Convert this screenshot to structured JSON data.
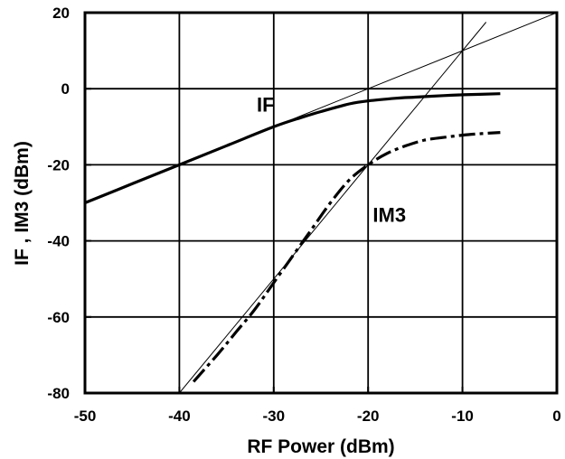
{
  "chart_data": {
    "type": "line",
    "title": "",
    "xlabel": "RF Power (dBm)",
    "ylabel": "IF , IM3 (dBm)",
    "xlim": [
      -50,
      0
    ],
    "ylim": [
      -80,
      20
    ],
    "xticks": [
      -50,
      -40,
      -30,
      -20,
      -10,
      0
    ],
    "yticks": [
      -80,
      -60,
      -40,
      -20,
      0,
      20
    ],
    "xtick_labels": [
      "-50",
      "-40",
      "-30",
      "-20",
      "-10",
      "0"
    ],
    "ytick_labels": [
      "-80",
      "-60",
      "-40",
      "-20",
      "0",
      "20"
    ],
    "grid": true,
    "series": [
      {
        "name": "IF",
        "style": "solid-thick",
        "x": [
          -50,
          -45,
          -40,
          -35,
          -30,
          -27,
          -25,
          -22,
          -20,
          -17,
          -15,
          -12,
          -10,
          -6
        ],
        "y": [
          -30,
          -25,
          -20,
          -15,
          -10,
          -7.5,
          -6,
          -4,
          -3.2,
          -2.5,
          -2.2,
          -1.8,
          -1.6,
          -1.3
        ]
      },
      {
        "name": "IM3",
        "style": "dash-dot-thick",
        "x": [
          -38.5,
          -36,
          -34,
          -32,
          -30,
          -28,
          -26,
          -24,
          -22,
          -20,
          -18,
          -16,
          -14,
          -12,
          -10,
          -8,
          -6
        ],
        "y": [
          -77,
          -70,
          -64,
          -58,
          -51,
          -44,
          -37,
          -30,
          -24,
          -20,
          -17,
          -15,
          -13.5,
          -12.8,
          -12.2,
          -11.8,
          -11.5
        ]
      },
      {
        "name": "",
        "style": "thin-reference",
        "x": [
          -50,
          0
        ],
        "y": [
          -30,
          20
        ]
      },
      {
        "name": "",
        "style": "thin-reference",
        "x": [
          -40,
          -7.5
        ],
        "y": [
          -80,
          17.5
        ]
      }
    ],
    "annotations": [
      {
        "text": "IF",
        "x": -31.8,
        "y": -6
      },
      {
        "text": "IM3",
        "x": -19.5,
        "y": -35
      }
    ]
  }
}
